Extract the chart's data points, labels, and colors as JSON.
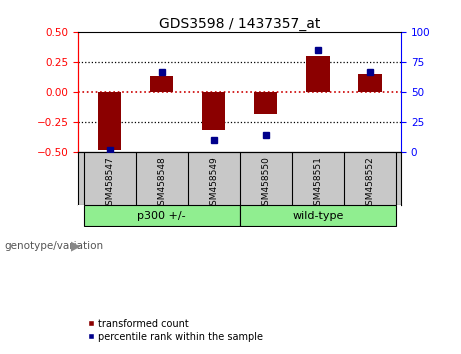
{
  "title": "GDS3598 / 1437357_at",
  "samples": [
    "GSM458547",
    "GSM458548",
    "GSM458549",
    "GSM458550",
    "GSM458551",
    "GSM458552"
  ],
  "bar_values": [
    -0.48,
    0.13,
    -0.32,
    -0.18,
    0.3,
    0.15
  ],
  "percentile_values": [
    2,
    67,
    10,
    14,
    85,
    67
  ],
  "bar_color": "#8B0000",
  "dot_color": "#00008B",
  "ylim_left": [
    -0.5,
    0.5
  ],
  "ylim_right": [
    0,
    100
  ],
  "yticks_left": [
    -0.5,
    -0.25,
    0,
    0.25,
    0.5
  ],
  "yticks_right": [
    0,
    25,
    50,
    75,
    100
  ],
  "hline_color": "#CC0000",
  "dotted_line_color": "black",
  "background_color": "white",
  "plot_bg_color": "white",
  "label_panel_color": "#C8C8C8",
  "group_color": "#90EE90",
  "groups": [
    {
      "label": "p300 +/-",
      "start": 0,
      "end": 2
    },
    {
      "label": "wild-type",
      "start": 3,
      "end": 5
    }
  ],
  "legend_items": [
    {
      "label": "transformed count",
      "color": "#8B0000"
    },
    {
      "label": "percentile rank within the sample",
      "color": "#00008B"
    }
  ],
  "xlabel_bottom": "genotype/variation"
}
